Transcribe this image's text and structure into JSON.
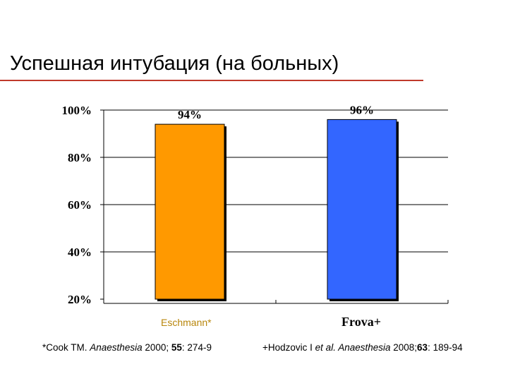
{
  "page": {
    "title": "Успешная интубация (на больных)"
  },
  "references": {
    "ref1": {
      "prefix": "*Cook TM. ",
      "journal": "Anaesthesia",
      "year": " 2000; ",
      "volume": "55",
      "pages": ": 274-9"
    },
    "ref2": {
      "prefix": "+Hodzovic I ",
      "etal": "et al. Anaesthesia",
      "year": " 2008;",
      "volume": "63",
      "pages": ": 189-94"
    }
  },
  "chart_data": {
    "type": "bar",
    "categories": [
      "Eschmann*",
      "Frova+"
    ],
    "values": [
      94,
      96
    ],
    "data_labels": [
      "94%",
      "96%"
    ],
    "bar_colors": [
      "#ff9900",
      "#3366ff"
    ],
    "ylim": [
      20,
      100
    ],
    "yticks": [
      "20%",
      "40%",
      "60%",
      "80%",
      "100%"
    ],
    "ytick_values": [
      20,
      40,
      60,
      80,
      100
    ],
    "grid": true,
    "legend": "none"
  }
}
